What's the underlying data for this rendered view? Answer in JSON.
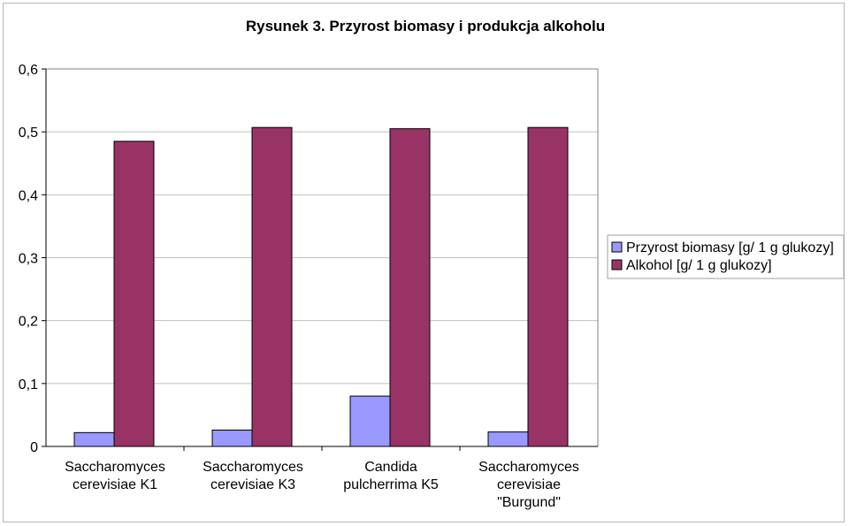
{
  "chart_data": {
    "type": "bar",
    "title": "Rysunek 3. Przyrost biomasy i produkcja alkoholu",
    "categories": [
      [
        "Saccharomyces",
        "cerevisiae K1"
      ],
      [
        "Saccharomyces",
        "cerevisiae K3"
      ],
      [
        "Candida",
        "pulcherrima K5"
      ],
      [
        "Saccharomyces",
        "cerevisiae",
        "\"Burgund\""
      ]
    ],
    "series": [
      {
        "name": "Przyrost biomasy [g/ 1 g glukozy]",
        "values": [
          0.022,
          0.026,
          0.08,
          0.023
        ],
        "color": "#9999ff"
      },
      {
        "name": "Alkohol [g/ 1 g glukozy]",
        "values": [
          0.485,
          0.507,
          0.505,
          0.507
        ],
        "color": "#993366"
      }
    ],
    "ylim": [
      0,
      0.6
    ],
    "yticks": [
      "0",
      "0,1",
      "0,2",
      "0,3",
      "0,4",
      "0,5",
      "0,6"
    ],
    "grid": true,
    "legend_position": "right",
    "plot_background": "#ffffff",
    "gridline_color": "#c0c0c0"
  }
}
